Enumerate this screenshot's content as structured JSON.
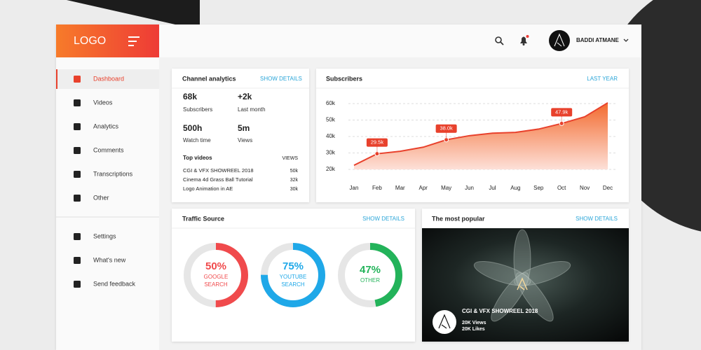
{
  "logo": "LOGO",
  "user": {
    "name": "BADDI ATMANE"
  },
  "nav": {
    "main": [
      "Dashboard",
      "Videos",
      "Analytics",
      "Comments",
      "Transcriptions",
      "Other"
    ],
    "secondary": [
      "Settings",
      "What's new",
      "Send feedback"
    ]
  },
  "channel_analytics": {
    "title": "Channel analytics",
    "action": "SHOW DETAILS",
    "stats": [
      {
        "value": "68k",
        "label": "Subscribers"
      },
      {
        "value": "+2k",
        "label": "Last month"
      },
      {
        "value": "500h",
        "label": "Watch time"
      },
      {
        "value": "5m",
        "label": "Views"
      }
    ],
    "top_videos": {
      "title": "Top videos",
      "column": "VIEWS",
      "rows": [
        [
          "CGI & VFX SHOWREEL 2018",
          "50k"
        ],
        [
          "Cinema 4d Grass Ball Tutorial",
          "32k"
        ],
        [
          "Logo Animation in AE",
          "30k"
        ]
      ]
    }
  },
  "subscribers": {
    "title": "Subscribers",
    "action": "LAST YEAR",
    "chart": {
      "type": "area",
      "categories": [
        "Jan",
        "Feb",
        "Mar",
        "Apr",
        "May",
        "Jun",
        "Jul",
        "Aug",
        "Sep",
        "Oct",
        "Nov",
        "Dec"
      ],
      "values": [
        22500,
        29500,
        31000,
        33500,
        38000,
        40500,
        42000,
        42500,
        44500,
        47900,
        52000,
        60500
      ],
      "value_labels": [
        null,
        "29.5k",
        null,
        null,
        "38.0k",
        null,
        null,
        null,
        null,
        "47.9k",
        null,
        null
      ],
      "ylim": [
        20000,
        60000
      ],
      "yticks": [
        {
          "value": 20000,
          "label": "20k"
        },
        {
          "value": 30000,
          "label": "30k"
        },
        {
          "value": 40000,
          "label": "40k"
        },
        {
          "value": 50000,
          "label": "50k"
        },
        {
          "value": 60000,
          "label": "60k"
        }
      ],
      "color": "#e8412c",
      "grid": true
    }
  },
  "traffic_source": {
    "title": "Traffic Source",
    "action": "SHOW DETAILS",
    "chart": {
      "type": "donut",
      "items": [
        {
          "value": 50,
          "value_label": "50%",
          "name": [
            "GOOGLE",
            "SEARCH"
          ],
          "color": "#f04a4c"
        },
        {
          "value": 75,
          "value_label": "75%",
          "name": [
            "YOUTUBE",
            "SEARCH"
          ],
          "color": "#1fa8e8"
        },
        {
          "value": 47,
          "value_label": "47%",
          "name": [
            "OTHER"
          ],
          "color": "#23b35a"
        }
      ]
    }
  },
  "most_popular": {
    "title": "The most popular",
    "action": "SHOW DETAILS",
    "video": {
      "title": "CGI & VFX SHOWREEL 2018",
      "views": "20K Views",
      "likes": "20K Likes"
    }
  }
}
